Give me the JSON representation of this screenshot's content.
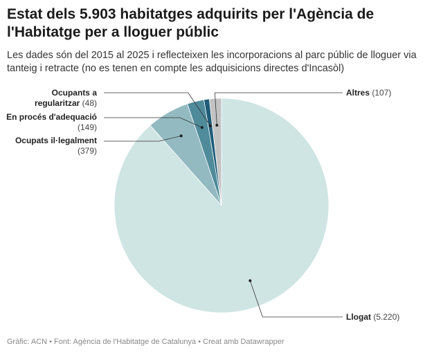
{
  "chart_data": {
    "type": "pie",
    "title": "Estat dels 5.903 habitatges adquirits per l'Agència de l'Habitatge per a lloguer públic",
    "subtitle": "Les dades són del 2015 al 2025 i reflecteixen les incorporacions al parc públic de lloguer via tanteig i retracte (no es tenen en compte les adquisicions directes d'Incasòl)",
    "footer": "Gràfic: ACN • Font: Agència de l'Habitatge de Catalunya • Creat amb Datawrapper",
    "categories": [
      "Llogat",
      "Ocupats il·legalment",
      "En procés d'adequació",
      "Ocupants a regularitzar",
      "Altres"
    ],
    "values": [
      5220,
      379,
      149,
      48,
      107
    ],
    "value_labels": [
      "(5.220)",
      "(379)",
      "(149)",
      "(48)",
      "(107)"
    ],
    "colors": [
      "#cfe5e3",
      "#93bac0",
      "#4f8b9a",
      "#1e5c79",
      "#c3c3c3"
    ]
  }
}
